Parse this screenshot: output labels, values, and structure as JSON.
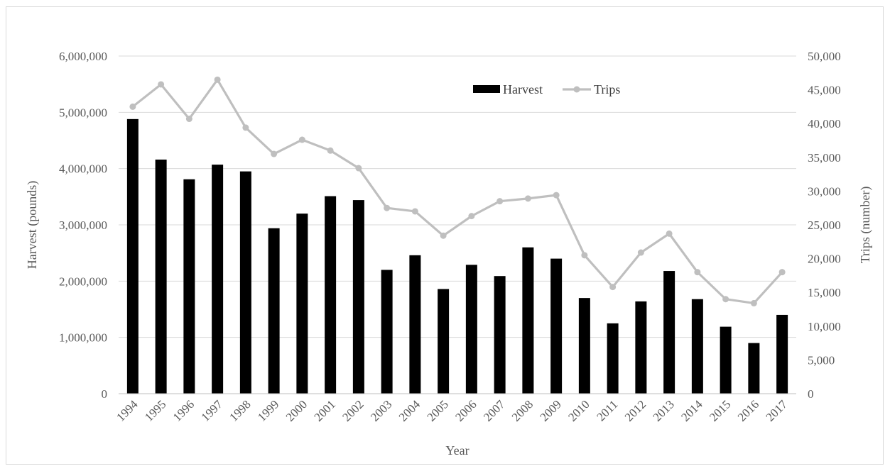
{
  "chart_data": {
    "type": "bar",
    "categories": [
      "1994",
      "1995",
      "1996",
      "1997",
      "1998",
      "1999",
      "2000",
      "2001",
      "2002",
      "2003",
      "2004",
      "2005",
      "2006",
      "2007",
      "2008",
      "2009",
      "2010",
      "2011",
      "2012",
      "2013",
      "2014",
      "2015",
      "2016",
      "2017"
    ],
    "series": [
      {
        "name": "Harvest",
        "type": "bar",
        "axis": "left",
        "color": "#000000",
        "values": [
          4880000,
          4160000,
          3810000,
          4070000,
          3950000,
          2940000,
          3200000,
          3510000,
          3440000,
          2200000,
          2460000,
          1860000,
          2290000,
          2090000,
          2600000,
          2400000,
          1700000,
          1250000,
          1640000,
          2180000,
          1680000,
          1190000,
          900000,
          1400000
        ]
      },
      {
        "name": "Trips",
        "type": "line",
        "axis": "right",
        "color": "#bfbfbf",
        "values": [
          42500,
          45800,
          40700,
          46500,
          39400,
          35500,
          37600,
          36000,
          33400,
          27500,
          27000,
          23400,
          26300,
          28500,
          28900,
          29400,
          20500,
          15800,
          20900,
          23700,
          18000,
          14000,
          13400,
          18000
        ]
      }
    ],
    "xlabel": "Year",
    "ylabel": "Harvest (pounds)",
    "y2label": "Trips (number)",
    "ylim": [
      0,
      6000000
    ],
    "y2lim": [
      0,
      50000
    ],
    "yticks": [
      "0",
      "1,000,000",
      "2,000,000",
      "3,000,000",
      "4,000,000",
      "5,000,000",
      "6,000,000"
    ],
    "y2ticks": [
      "0",
      "5,000",
      "10,000",
      "15,000",
      "20,000",
      "25,000",
      "30,000",
      "35,000",
      "40,000",
      "45,000",
      "50,000"
    ],
    "grid": true,
    "legend_position": "top-center"
  }
}
